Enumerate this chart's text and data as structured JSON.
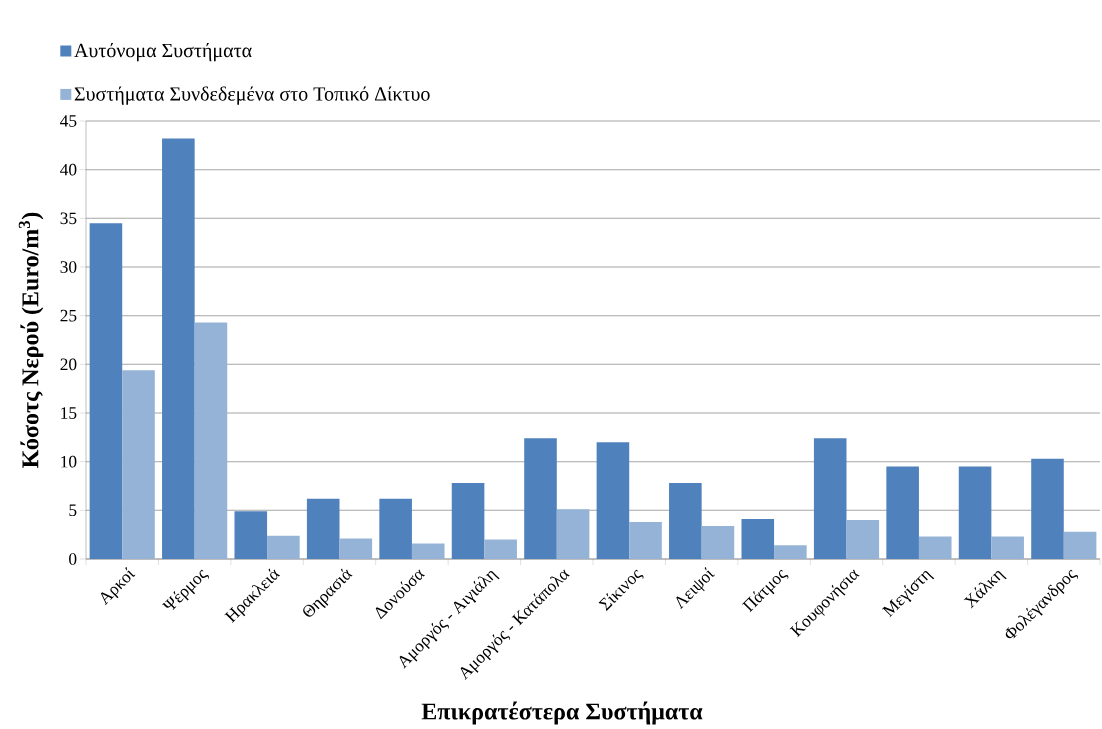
{
  "chart_data": {
    "type": "bar",
    "xlabel": "Επικρατέστερα Συστήματα",
    "ylabel": "Κόσοτς Νερού (Euro/m$^{3}$)",
    "categories": [
      "Αρκοί",
      "Ψέρμος",
      "Ηρακλειά",
      "Θηρασιά",
      "Δονούσα",
      "Αμοργός - Αιγιάλη",
      "Αμοργός - Κατάπολα",
      "Σίκινος",
      "Λειψοί",
      "Πάτμος",
      "Κουφονήσια",
      "Μεγίστη",
      "Χάλκη",
      "Φολέγανδρος"
    ],
    "series": [
      {
        "name": "Αυτόνομα Συστήματα",
        "color": "#4f81bd",
        "values": [
          34.5,
          43.2,
          4.9,
          6.2,
          6.2,
          7.8,
          12.4,
          12.0,
          7.8,
          4.1,
          12.4,
          9.5,
          9.5,
          10.3
        ]
      },
      {
        "name": "Συστήματα Συνδεδεμένα στο Τοπικό Δίκτυο",
        "color": "#95b3d7",
        "values": [
          19.4,
          24.3,
          2.4,
          2.1,
          1.6,
          2.0,
          5.1,
          3.8,
          3.4,
          1.4,
          4.0,
          2.3,
          2.3,
          2.8
        ]
      }
    ],
    "ylim": [
      0,
      45
    ],
    "yticks": [
      0,
      5,
      10,
      15,
      20,
      25,
      30,
      35,
      40,
      45
    ],
    "grid": "y",
    "legend": "top left"
  }
}
